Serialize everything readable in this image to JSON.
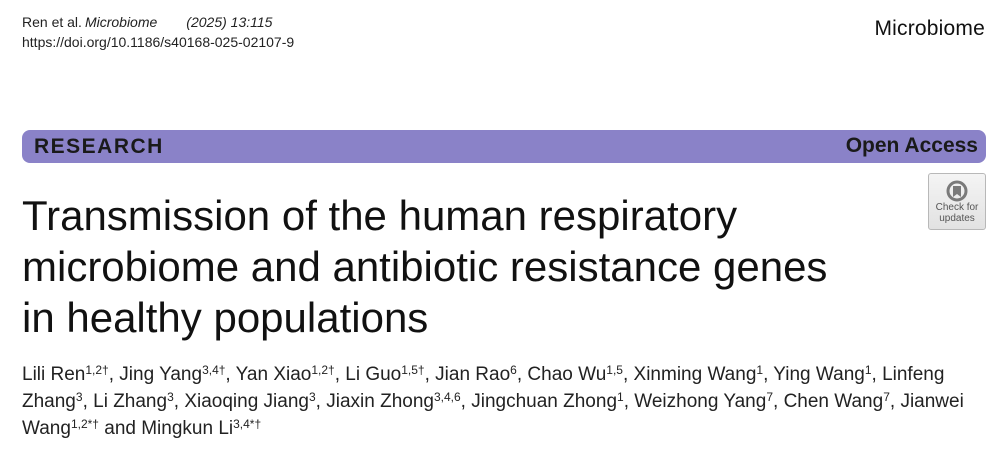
{
  "header": {
    "author_short": "Ren et al.",
    "journal_italic": "Microbiome",
    "year_volume": "(2025) 13:115",
    "doi": "https://doi.org/10.1186/s40168-025-02107-9",
    "journal_name": "Microbiome"
  },
  "banner": {
    "article_type": "RESEARCH",
    "access": "Open Access",
    "color": "#8a82c8"
  },
  "check_updates": {
    "icon": "check-for-updates-icon",
    "line1": "Check for",
    "line2": "updates"
  },
  "title": {
    "line1": "Transmission of the human respiratory",
    "line2": "microbiome and antibiotic resistance genes",
    "line3": "in healthy populations"
  },
  "authors": [
    {
      "name": "Lili Ren",
      "sup": "1,2†",
      "sep": ", "
    },
    {
      "name": "Jing Yang",
      "sup": "3,4†",
      "sep": ", "
    },
    {
      "name": "Yan Xiao",
      "sup": "1,2†",
      "sep": ", "
    },
    {
      "name": "Li Guo",
      "sup": "1,5†",
      "sep": ", "
    },
    {
      "name": "Jian Rao",
      "sup": "6",
      "sep": ", "
    },
    {
      "name": "Chao Wu",
      "sup": "1,5",
      "sep": ", "
    },
    {
      "name": "Xinming Wang",
      "sup": "1",
      "sep": ", "
    },
    {
      "name": "Ying Wang",
      "sup": "1",
      "sep": ", "
    },
    {
      "name": "Linfeng Zhang",
      "sup": "3",
      "sep": ", "
    },
    {
      "name": "Li Zhang",
      "sup": "3",
      "sep": ", "
    },
    {
      "name": "Xiaoqing Jiang",
      "sup": "3",
      "sep": ", "
    },
    {
      "name": "Jiaxin  Zhong",
      "sup": "3,4,6",
      "sep": ", "
    },
    {
      "name": "Jingchuan Zhong",
      "sup": "1",
      "sep": ", "
    },
    {
      "name": "Weizhong  Yang",
      "sup": "7",
      "sep": ", "
    },
    {
      "name": "Chen Wang",
      "sup": "7",
      "sep": ", "
    },
    {
      "name": "Jianwei Wang",
      "sup": "1,2*†",
      "sep": " and "
    },
    {
      "name": "Mingkun Li",
      "sup": "3,4*†",
      "sep": ""
    }
  ]
}
